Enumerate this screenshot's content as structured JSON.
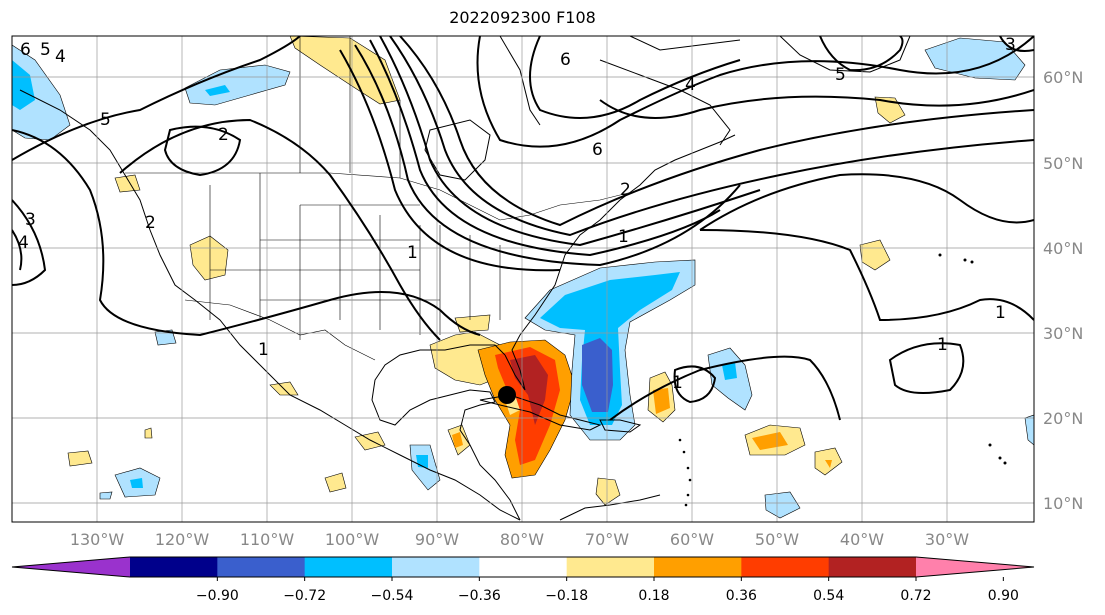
{
  "title": "2022092300 F108",
  "map": {
    "lon_labels": [
      "130°W",
      "120°W",
      "110°W",
      "100°W",
      "90°W",
      "80°W",
      "70°W",
      "60°W",
      "50°W",
      "40°W",
      "30°W"
    ],
    "lat_labels": [
      "60°N",
      "50°N",
      "40°N",
      "30°N",
      "20°N",
      "10°N"
    ],
    "contour_labels": [
      "6",
      "5",
      "4",
      "2",
      "3",
      "4",
      "1",
      "2",
      "6",
      "5",
      "4",
      "6",
      "3",
      "1",
      "2",
      "1",
      "1",
      "1",
      "1",
      "5"
    ],
    "storm_marker": "storm-center-dot"
  },
  "colorbar": {
    "tick_labels": [
      "−0.90",
      "−0.72",
      "−0.54",
      "−0.36",
      "−0.18",
      "0.18",
      "0.36",
      "0.54",
      "0.72",
      "0.90"
    ],
    "colors": [
      "#9a32cd",
      "#00008b",
      "#3a5fcd",
      "#00bfff",
      "#b0e2ff",
      "#ffffff",
      "#ffe98f",
      "#ff9f00",
      "#ff3d00",
      "#b22222",
      "#ff80ab"
    ]
  }
}
